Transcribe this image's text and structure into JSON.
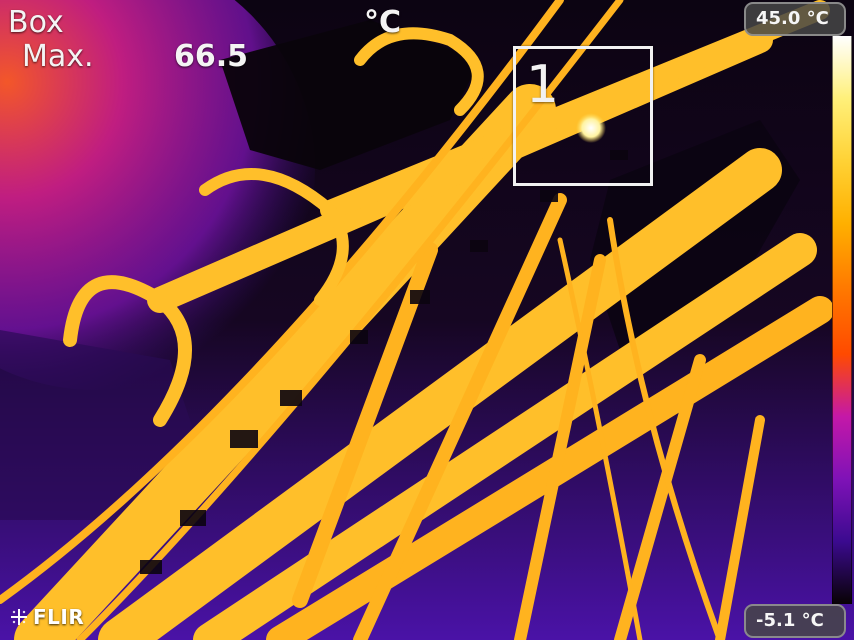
{
  "overlay": {
    "box_label": "Box",
    "max_label": "Max.",
    "max_value": "66.5",
    "unit_label": "°C"
  },
  "roi": {
    "id": "1"
  },
  "scale": {
    "top_label": "45.0 °C",
    "bottom_label": "-5.1 °C",
    "colors": [
      "#ffffff",
      "#fff07a",
      "#ffd235",
      "#ffb000",
      "#ff7b00",
      "#ff4a00",
      "#c418a8",
      "#7f12b7",
      "#3b0a8f",
      "#080204"
    ]
  },
  "branding": {
    "logo_text": "FLIR",
    "logo_icon": "flir-snowflake-icon"
  }
}
